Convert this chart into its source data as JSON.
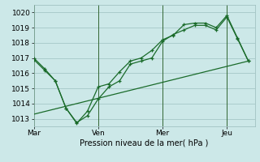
{
  "background_color": "#cce8e8",
  "grid_color": "#aacccc",
  "line_color": "#1a6b2a",
  "xlabel": "Pression niveau de la mer( hPa )",
  "ylim": [
    1012.5,
    1020.5
  ],
  "yticks": [
    1013,
    1014,
    1015,
    1016,
    1017,
    1018,
    1019,
    1020
  ],
  "xtick_labels": [
    "Mar",
    "Ven",
    "Mer",
    "Jeu"
  ],
  "xtick_positions": [
    0,
    3,
    6,
    9
  ],
  "vlines": [
    0,
    3,
    6,
    9
  ],
  "line1_x": [
    0,
    0.5,
    1,
    1.5,
    2,
    2.5,
    3,
    3.5,
    4,
    4.5,
    5,
    5.5,
    6,
    6.5,
    7,
    7.5,
    8,
    8.5,
    9,
    9.5,
    10
  ],
  "line1_y": [
    1017.0,
    1016.3,
    1015.5,
    1013.7,
    1012.7,
    1013.5,
    1015.1,
    1015.3,
    1016.1,
    1016.8,
    1017.0,
    1017.5,
    1018.2,
    1018.5,
    1019.2,
    1019.3,
    1019.3,
    1019.0,
    1019.8,
    1018.3,
    1016.8
  ],
  "line2_x": [
    0,
    0.5,
    1,
    1.5,
    2,
    2.5,
    3,
    3.5,
    4,
    4.5,
    5,
    5.5,
    6,
    6.5,
    7,
    7.5,
    8,
    8.5,
    9,
    9.5,
    10
  ],
  "line2_y": [
    1016.9,
    1016.2,
    1015.5,
    1013.7,
    1012.75,
    1013.2,
    1014.3,
    1015.1,
    1015.5,
    1016.6,
    1016.8,
    1017.0,
    1018.1,
    1018.55,
    1018.85,
    1019.15,
    1019.15,
    1018.85,
    1019.7,
    1018.25,
    1016.8
  ],
  "line3_x": [
    0,
    10
  ],
  "line3_y": [
    1013.3,
    1016.8
  ],
  "xlim": [
    0,
    10.3
  ]
}
